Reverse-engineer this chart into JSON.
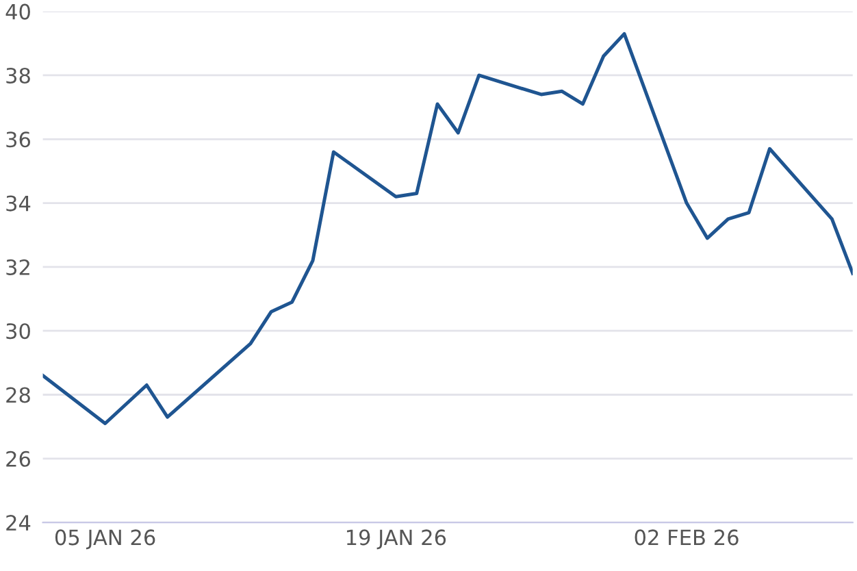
{
  "chart_data": {
    "type": "line",
    "x": [
      "2026-01-02",
      "2026-01-05",
      "2026-01-07",
      "2026-01-08",
      "2026-01-12",
      "2026-01-13",
      "2026-01-14",
      "2026-01-15",
      "2026-01-16",
      "2026-01-19",
      "2026-01-20",
      "2026-01-21",
      "2026-01-22",
      "2026-01-23",
      "2026-01-26",
      "2026-01-27",
      "2026-01-28",
      "2026-01-29",
      "2026-01-30",
      "2026-02-02",
      "2026-02-03",
      "2026-02-04",
      "2026-02-05",
      "2026-02-06",
      "2026-02-09",
      "2026-02-10"
    ],
    "series": [
      {
        "color": "#1f5591",
        "values": [
          28.6,
          27.1,
          28.3,
          27.3,
          29.6,
          30.6,
          30.9,
          32.2,
          35.6,
          34.2,
          34.3,
          37.1,
          36.2,
          38.0,
          37.4,
          37.5,
          37.1,
          38.6,
          39.3,
          34.0,
          32.9,
          33.5,
          33.7,
          35.7,
          33.5,
          31.8
        ]
      }
    ],
    "xlim": [
      "2026-01-02",
      "2026-02-10"
    ],
    "xticks": [
      {
        "value": "2026-01-05",
        "label": "05 JAN 26"
      },
      {
        "value": "2026-01-19",
        "label": "19 JAN 26"
      },
      {
        "value": "2026-02-02",
        "label": "02 FEB 26"
      }
    ],
    "ylim": [
      24,
      40
    ],
    "yticks": [
      24,
      26,
      28,
      30,
      32,
      34,
      36,
      38,
      40
    ],
    "grid": "y",
    "line_style": "solid",
    "marker": "none"
  }
}
